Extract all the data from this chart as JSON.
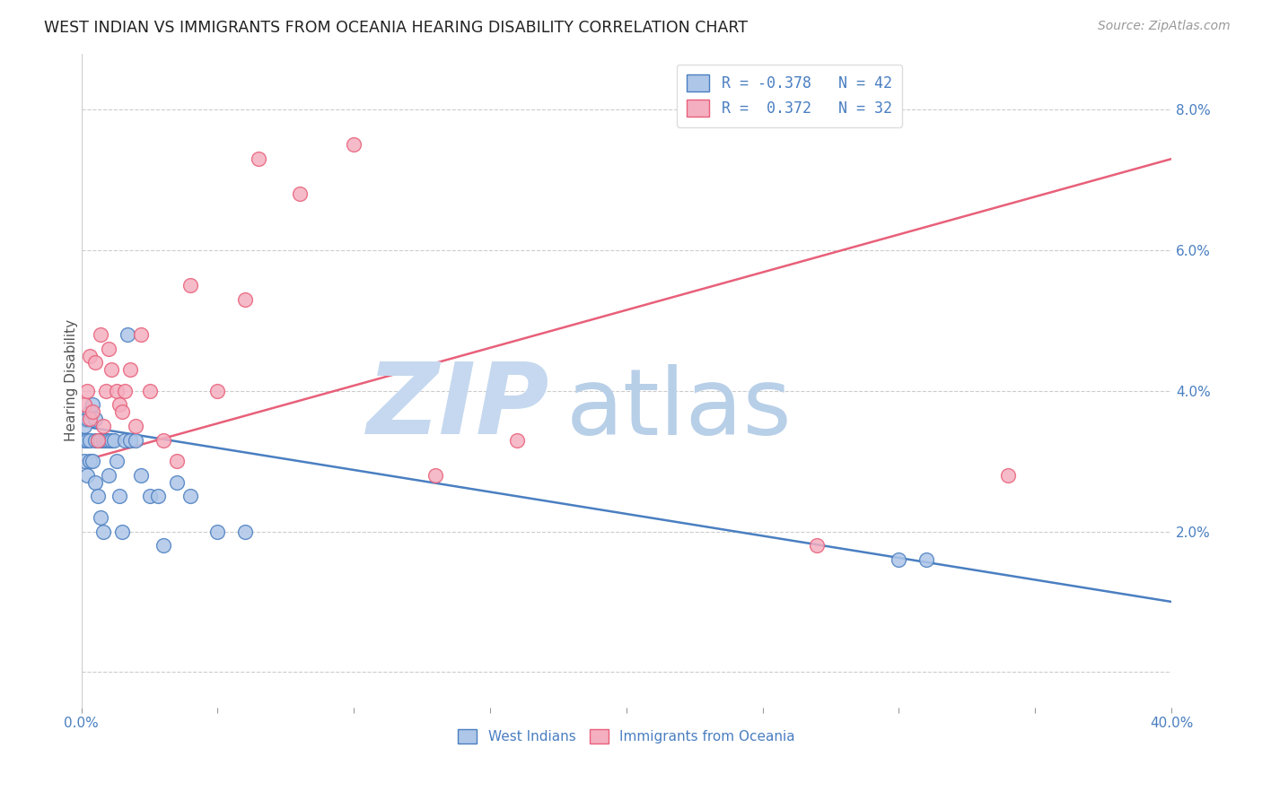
{
  "title": "WEST INDIAN VS IMMIGRANTS FROM OCEANIA HEARING DISABILITY CORRELATION CHART",
  "source_text": "Source: ZipAtlas.com",
  "ylabel": "Hearing Disability",
  "y_ticks": [
    0.0,
    0.02,
    0.04,
    0.06,
    0.08
  ],
  "y_tick_labels": [
    "",
    "2.0%",
    "4.0%",
    "6.0%",
    "8.0%"
  ],
  "x_lim": [
    0.0,
    0.4
  ],
  "y_lim": [
    -0.005,
    0.088
  ],
  "legend_blue_r": "R = -0.378",
  "legend_blue_n": "N = 42",
  "legend_pink_r": "R =  0.372",
  "legend_pink_n": "N = 32",
  "blue_color": "#aec6e8",
  "pink_color": "#f4afc0",
  "blue_line_color": "#4a7fc1",
  "pink_line_color": "#e8607a",
  "legend_text_color": "#4a7fc1",
  "watermark_zip_color": "#c5d8ef",
  "watermark_atlas_color": "#b8cfe8",
  "blue_line_x0": 0.0,
  "blue_line_y0": 0.035,
  "blue_line_x1": 0.4,
  "blue_line_y1": 0.01,
  "pink_line_x0": 0.0,
  "pink_line_y0": 0.03,
  "pink_line_x1": 0.4,
  "pink_line_y1": 0.073,
  "blue_scatter_x": [
    0.001,
    0.001,
    0.001,
    0.002,
    0.002,
    0.002,
    0.003,
    0.003,
    0.003,
    0.004,
    0.004,
    0.005,
    0.005,
    0.005,
    0.006,
    0.006,
    0.007,
    0.007,
    0.008,
    0.008,
    0.009,
    0.01,
    0.01,
    0.011,
    0.012,
    0.013,
    0.014,
    0.015,
    0.016,
    0.017,
    0.018,
    0.02,
    0.022,
    0.025,
    0.028,
    0.03,
    0.035,
    0.04,
    0.05,
    0.06,
    0.3,
    0.31
  ],
  "blue_scatter_y": [
    0.035,
    0.033,
    0.03,
    0.036,
    0.033,
    0.028,
    0.037,
    0.033,
    0.03,
    0.038,
    0.03,
    0.036,
    0.033,
    0.027,
    0.033,
    0.025,
    0.033,
    0.022,
    0.033,
    0.02,
    0.033,
    0.033,
    0.028,
    0.033,
    0.033,
    0.03,
    0.025,
    0.02,
    0.033,
    0.048,
    0.033,
    0.033,
    0.028,
    0.025,
    0.025,
    0.018,
    0.027,
    0.025,
    0.02,
    0.02,
    0.016,
    0.016
  ],
  "pink_scatter_x": [
    0.001,
    0.002,
    0.003,
    0.003,
    0.004,
    0.005,
    0.006,
    0.007,
    0.008,
    0.009,
    0.01,
    0.011,
    0.013,
    0.014,
    0.015,
    0.016,
    0.018,
    0.02,
    0.022,
    0.025,
    0.03,
    0.035,
    0.04,
    0.05,
    0.06,
    0.065,
    0.08,
    0.1,
    0.13,
    0.16,
    0.27,
    0.34
  ],
  "pink_scatter_y": [
    0.038,
    0.04,
    0.036,
    0.045,
    0.037,
    0.044,
    0.033,
    0.048,
    0.035,
    0.04,
    0.046,
    0.043,
    0.04,
    0.038,
    0.037,
    0.04,
    0.043,
    0.035,
    0.048,
    0.04,
    0.033,
    0.03,
    0.055,
    0.04,
    0.053,
    0.073,
    0.068,
    0.075,
    0.028,
    0.033,
    0.018,
    0.028
  ]
}
